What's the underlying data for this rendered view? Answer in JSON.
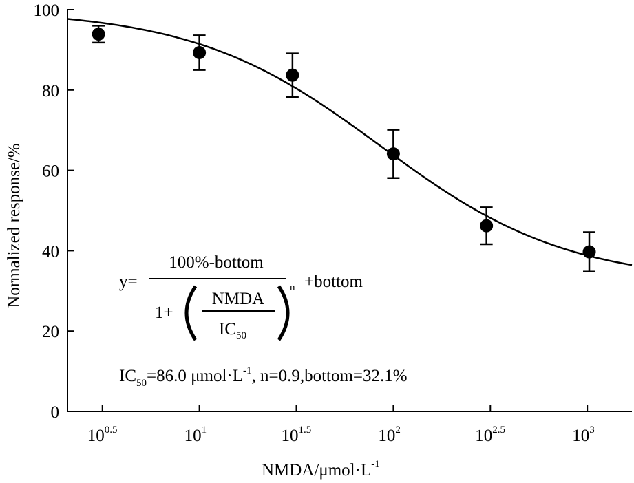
{
  "chart_data": {
    "type": "scatter",
    "title": "",
    "xlabel": {
      "main": "NMDA/μmol·L",
      "sup": "-1"
    },
    "ylabel": "Normalized response/%",
    "x_scale": "log10",
    "xlim_log": [
      0.32,
      3.23
    ],
    "ylim": [
      0,
      100
    ],
    "y_ticks": [
      0,
      20,
      40,
      60,
      80,
      100
    ],
    "x_ticks": [
      {
        "log": 0.5,
        "base": "10",
        "exp": "0.5"
      },
      {
        "log": 1.0,
        "base": "10",
        "exp": "1"
      },
      {
        "log": 1.5,
        "base": "10",
        "exp": "1.5"
      },
      {
        "log": 2.0,
        "base": "10",
        "exp": "2"
      },
      {
        "log": 2.5,
        "base": "10",
        "exp": "2.5"
      },
      {
        "log": 3.0,
        "base": "10",
        "exp": "3"
      }
    ],
    "points": [
      {
        "log_x": 0.48,
        "y": 93.9,
        "err": 2.1
      },
      {
        "log_x": 1.0,
        "y": 89.3,
        "err": 4.3
      },
      {
        "log_x": 1.48,
        "y": 83.7,
        "err": 5.4
      },
      {
        "log_x": 2.0,
        "y": 64.1,
        "err": 6.0
      },
      {
        "log_x": 2.48,
        "y": 46.2,
        "err": 4.6
      },
      {
        "log_x": 3.01,
        "y": 39.7,
        "err": 4.9
      }
    ],
    "fit": {
      "model": "y = (100 - bottom) / (1 + (NMDA/IC50)^n) + bottom",
      "IC50": 86.0,
      "n": 0.9,
      "bottom": 32.1,
      "log_x_range": [
        0.32,
        3.23
      ]
    },
    "annotations": {
      "equation": {
        "lhs": "y=",
        "numerator": "100%-bottom",
        "one_plus": "1+",
        "frac_num": "NMDA",
        "frac_den": "IC",
        "frac_den_sub": "50",
        "exponent": "n",
        "tail": "+bottom"
      },
      "params": {
        "ic": "IC",
        "ic_sub": "50",
        "ic_val": "=86.0 μmol·L",
        "ic_sup": "-1",
        "rest": ",  n=0.9,bottom=32.1%"
      }
    }
  }
}
